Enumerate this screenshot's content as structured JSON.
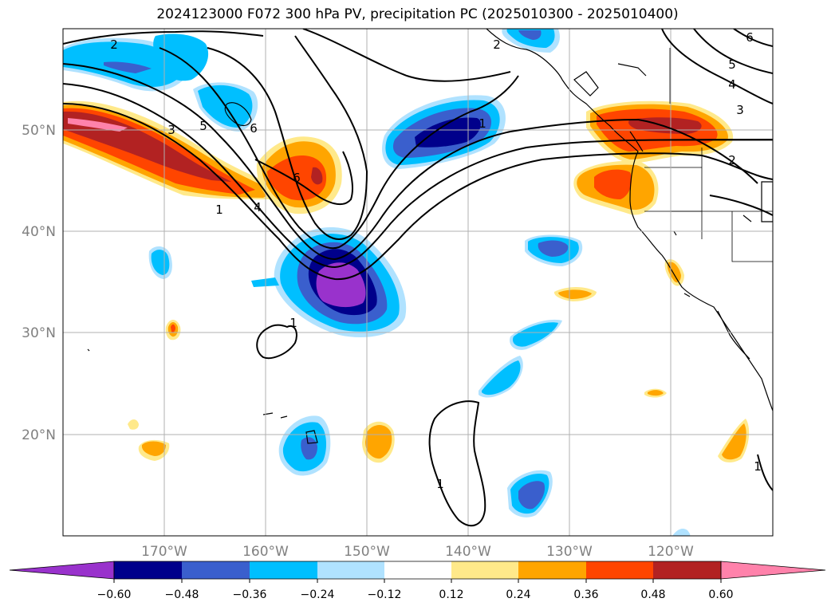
{
  "title": "2024123000 F072 300 hPa PV, precipitation PC (2025010300 - 2025010400)",
  "map": {
    "lon_labels": [
      "170°W",
      "160°W",
      "150°W",
      "140°W",
      "130°W",
      "120°W"
    ],
    "lat_labels": [
      "50°N",
      "40°N",
      "30°N",
      "20°N"
    ],
    "contour_labels": [
      "2",
      "2",
      "3",
      "5",
      "6",
      "6",
      "1",
      "4",
      "6",
      "5",
      "4",
      "3",
      "2",
      "1",
      "1",
      "1",
      "1"
    ],
    "colors": {
      "coastline": "#000000",
      "grid": "#b0b0b0",
      "contour": "#000000"
    }
  },
  "colorbar": {
    "ticks": [
      "−0.60",
      "−0.48",
      "−0.36",
      "−0.24",
      "−0.12",
      "0.12",
      "0.24",
      "0.36",
      "0.48",
      "0.60"
    ],
    "colors": [
      "#9932CC",
      "#00008B",
      "#3A5FCD",
      "#00BFFF",
      "#B0E2FF",
      "#FFFFFF",
      "#FFE98A",
      "#FFA500",
      "#FF4500",
      "#B22222",
      "#FF82AB"
    ]
  }
}
